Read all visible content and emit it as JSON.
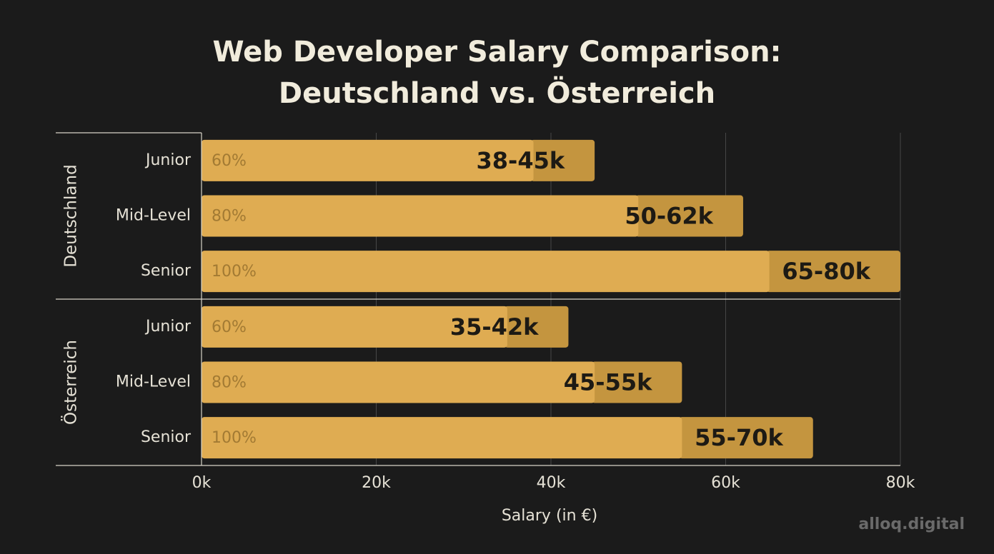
{
  "chart_data": {
    "type": "range-bar",
    "title": "Web Developer Salary Comparison: Deutschland vs. Österreich",
    "x_label": "Salary (in €)",
    "watermark": "alloq.digital",
    "xlim": [
      0,
      80
    ],
    "xticks": [
      {
        "value": 0,
        "label": "0k"
      },
      {
        "value": 20,
        "label": "20k"
      },
      {
        "value": 40,
        "label": "40k"
      },
      {
        "value": 60,
        "label": "60k"
      },
      {
        "value": 80,
        "label": "80k"
      }
    ],
    "grid": true,
    "color": "#dfac52",
    "range_color": "#c4953f",
    "groups": [
      {
        "name": "Deutschland",
        "categories": [
          "Junior",
          "Mid-Level",
          "Senior"
        ],
        "low": [
          38,
          50,
          65
        ],
        "high": [
          45,
          62,
          80
        ],
        "value_labels": [
          "38-45k",
          "50-62k",
          "65-80k"
        ],
        "percent": [
          60,
          80,
          100
        ],
        "percent_labels": [
          "60%",
          "80%",
          "100%"
        ]
      },
      {
        "name": "Österreich",
        "categories": [
          "Junior",
          "Mid-Level",
          "Senior"
        ],
        "low": [
          35,
          45,
          55
        ],
        "high": [
          42,
          55,
          70
        ],
        "value_labels": [
          "35-42k",
          "45-55k",
          "55-70k"
        ],
        "percent": [
          60,
          80,
          100
        ],
        "percent_labels": [
          "60%",
          "80%",
          "100%"
        ]
      }
    ]
  }
}
